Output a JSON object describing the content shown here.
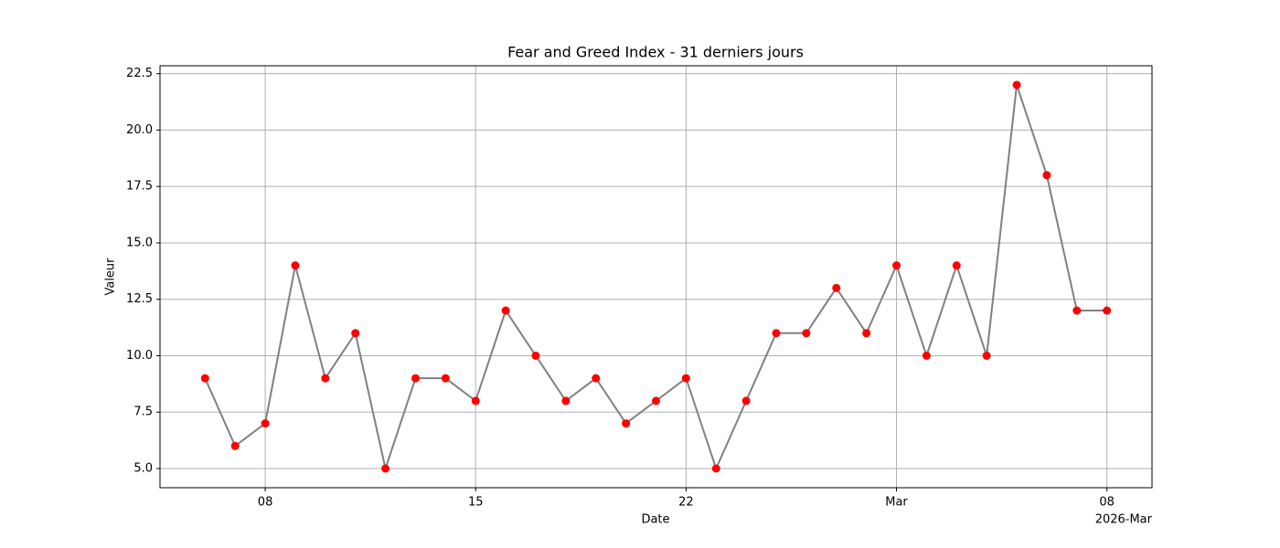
{
  "chart_data": {
    "type": "line",
    "title": "Fear and Greed Index - 31 derniers jours",
    "xlabel": "Date",
    "ylabel": "Valeur",
    "x_offset_label": "2026-Mar",
    "x": [
      "2026-02-06",
      "2026-02-07",
      "2026-02-08",
      "2026-02-09",
      "2026-02-10",
      "2026-02-11",
      "2026-02-12",
      "2026-02-13",
      "2026-02-14",
      "2026-02-15",
      "2026-02-16",
      "2026-02-17",
      "2026-02-18",
      "2026-02-19",
      "2026-02-20",
      "2026-02-21",
      "2026-02-22",
      "2026-02-23",
      "2026-02-24",
      "2026-02-25",
      "2026-02-26",
      "2026-02-27",
      "2026-02-28",
      "2026-03-01",
      "2026-03-02",
      "2026-03-03",
      "2026-03-04",
      "2026-03-05",
      "2026-03-06",
      "2026-03-07",
      "2026-03-08"
    ],
    "values": [
      9,
      6,
      7,
      14,
      9,
      11,
      5,
      9,
      9,
      8,
      12,
      10,
      8,
      9,
      7,
      8,
      9,
      5,
      8,
      11,
      11,
      13,
      11,
      14,
      10,
      14,
      10,
      22,
      18,
      12,
      12
    ],
    "line_color": "#808080",
    "marker_color": "#ff0000",
    "xlim": [
      "2026-02-04T12:00:00Z",
      "2026-03-09T12:00:00Z"
    ],
    "xticks": [
      {
        "value": "2026-02-08",
        "label": "08"
      },
      {
        "value": "2026-02-15",
        "label": "15"
      },
      {
        "value": "2026-02-22",
        "label": "22"
      },
      {
        "value": "2026-03-01",
        "label": "Mar"
      },
      {
        "value": "2026-03-08",
        "label": "08"
      }
    ],
    "ylim": [
      4.15,
      22.85
    ],
    "yticks": [
      {
        "value": 5,
        "label": "5.0"
      },
      {
        "value": 7.5,
        "label": "7.5"
      },
      {
        "value": 10,
        "label": "10.0"
      },
      {
        "value": 12.5,
        "label": "12.5"
      },
      {
        "value": 15,
        "label": "15.0"
      },
      {
        "value": 17.5,
        "label": "17.5"
      },
      {
        "value": 20,
        "label": "20.0"
      },
      {
        "value": 22.5,
        "label": "22.5"
      }
    ],
    "grid": true
  }
}
